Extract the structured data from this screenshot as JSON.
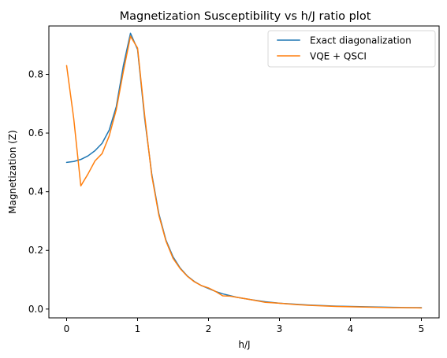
{
  "chart_data": {
    "type": "line",
    "title": "Magnetization Susceptibility vs h/J ratio plot",
    "xlabel": "h/J",
    "ylabel": "Magnetization (Z)",
    "xlim": [
      -0.25,
      5.25
    ],
    "ylim": [
      -0.03,
      0.965
    ],
    "xticks": [
      0,
      1,
      2,
      3,
      4,
      5
    ],
    "yticks": [
      0.0,
      0.2,
      0.4,
      0.6,
      0.8
    ],
    "xtick_labels": [
      "0",
      "1",
      "2",
      "3",
      "4",
      "5"
    ],
    "ytick_labels": [
      "0.0",
      "0.2",
      "0.4",
      "0.6",
      "0.8"
    ],
    "grid": false,
    "legend_position": "top-right",
    "series": [
      {
        "name": "Exact diagonalization",
        "color": "#1f77b4",
        "x": [
          0,
          0.1,
          0.2,
          0.3,
          0.4,
          0.5,
          0.6,
          0.7,
          0.8,
          0.9,
          1.0,
          1.1,
          1.2,
          1.3,
          1.4,
          1.5,
          1.6,
          1.7,
          1.8,
          1.9,
          2.0,
          2.1,
          2.2,
          2.4,
          2.6,
          2.8,
          3.0,
          3.2,
          3.4,
          3.6,
          3.8,
          4.0,
          4.2,
          4.4,
          4.6,
          4.8,
          5.0
        ],
        "y": [
          0.5,
          0.503,
          0.51,
          0.522,
          0.54,
          0.565,
          0.61,
          0.69,
          0.83,
          0.94,
          0.885,
          0.65,
          0.46,
          0.325,
          0.235,
          0.178,
          0.14,
          0.113,
          0.094,
          0.08,
          0.07,
          0.06,
          0.052,
          0.04,
          0.032,
          0.025,
          0.02,
          0.017,
          0.014,
          0.012,
          0.01,
          0.009,
          0.008,
          0.007,
          0.006,
          0.005,
          0.005
        ]
      },
      {
        "name": "VQE + QSCI",
        "color": "#ff7f0e",
        "x": [
          0,
          0.1,
          0.2,
          0.3,
          0.4,
          0.5,
          0.6,
          0.7,
          0.8,
          0.9,
          1.0,
          1.1,
          1.2,
          1.3,
          1.4,
          1.5,
          1.6,
          1.7,
          1.8,
          1.9,
          2.0,
          2.1,
          2.2,
          2.3,
          2.4,
          2.6,
          2.8,
          3.0,
          3.2,
          3.4,
          3.6,
          3.8,
          4.0,
          4.2,
          4.4,
          4.6,
          4.8,
          5.0
        ],
        "y": [
          0.83,
          0.65,
          0.42,
          0.46,
          0.505,
          0.53,
          0.59,
          0.68,
          0.81,
          0.93,
          0.89,
          0.66,
          0.455,
          0.32,
          0.232,
          0.173,
          0.138,
          0.112,
          0.093,
          0.08,
          0.072,
          0.06,
          0.045,
          0.044,
          0.04,
          0.032,
          0.023,
          0.02,
          0.016,
          0.013,
          0.011,
          0.009,
          0.008,
          0.007,
          0.006,
          0.005,
          0.005,
          0.004
        ]
      }
    ]
  }
}
